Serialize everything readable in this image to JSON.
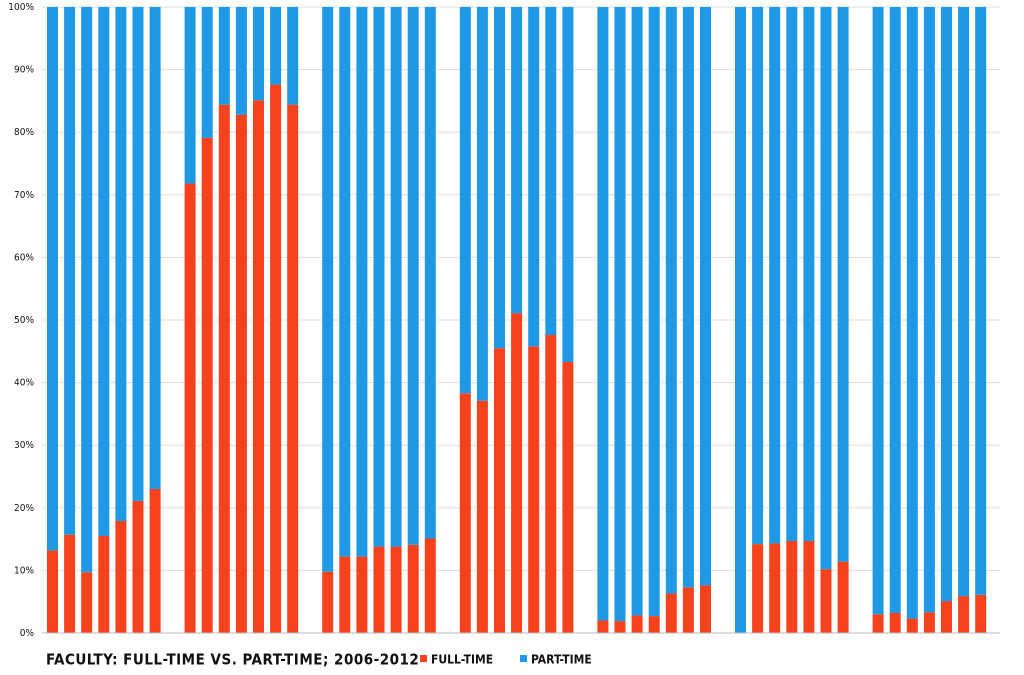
{
  "chart_data": {
    "type": "stacked_bar_100",
    "title": "FACULTY: FULL-TIME VS. PART-TIME; 2006-2012",
    "categories": [
      null,
      null,
      null,
      null,
      null,
      null,
      null,
      null,
      null,
      null,
      null,
      null,
      null,
      null,
      null,
      null,
      null,
      null,
      null,
      null,
      null,
      null,
      null,
      null,
      null,
      null,
      null,
      null,
      null,
      null,
      null,
      null,
      null,
      null,
      null,
      null,
      null,
      null,
      null,
      null,
      null,
      null,
      null,
      null,
      null,
      null,
      null,
      null,
      null
    ],
    "series": [
      {
        "name": "FULL-TIME",
        "color": "#f5421c",
        "values": [
          13.2,
          15.7,
          9.7,
          15.5,
          17.9,
          21.1,
          23.0,
          71.8,
          79.1,
          84.4,
          82.8,
          85.1,
          87.6,
          84.4,
          9.8,
          12.2,
          12.2,
          13.8,
          13.8,
          14.1,
          15.1,
          38.3,
          37.1,
          45.5,
          51.1,
          45.8,
          47.6,
          43.3,
          2.0,
          1.9,
          2.8,
          2.7,
          6.3,
          7.3,
          7.6,
          0,
          14.2,
          14.3,
          14.7,
          14.7,
          10.2,
          11.4,
          3.0,
          3.2,
          2.3,
          3.3,
          5.1,
          5.9,
          6.1
        ]
      },
      {
        "name": "PART-TIME",
        "color": "#1f98e6",
        "values": [
          86.8,
          84.3,
          90.3,
          84.5,
          82.1,
          78.9,
          77.0,
          28.2,
          20.9,
          15.6,
          17.2,
          14.9,
          12.4,
          15.6,
          90.2,
          87.8,
          87.8,
          86.2,
          86.2,
          85.9,
          84.9,
          61.7,
          62.9,
          54.5,
          48.9,
          54.2,
          52.4,
          56.7,
          98.0,
          98.1,
          97.2,
          97.3,
          93.7,
          92.7,
          92.4,
          100,
          85.8,
          85.7,
          85.3,
          85.3,
          89.8,
          88.6,
          97.0,
          96.8,
          97.7,
          96.7,
          94.9,
          94.1,
          93.9
        ]
      }
    ],
    "ylim": [
      0,
      100
    ],
    "yticks": [
      {
        "value": 0,
        "label": "0%"
      },
      {
        "value": 10,
        "label": "10%"
      },
      {
        "value": 20,
        "label": "20%"
      },
      {
        "value": 30,
        "label": "30%"
      },
      {
        "value": 40,
        "label": "40%"
      },
      {
        "value": 50,
        "label": "50%"
      },
      {
        "value": 60,
        "label": "60%"
      },
      {
        "value": 70,
        "label": "70%"
      },
      {
        "value": 80,
        "label": "80%"
      },
      {
        "value": 90,
        "label": "90%"
      },
      {
        "value": 100,
        "label": "100%"
      }
    ],
    "grid": true
  }
}
